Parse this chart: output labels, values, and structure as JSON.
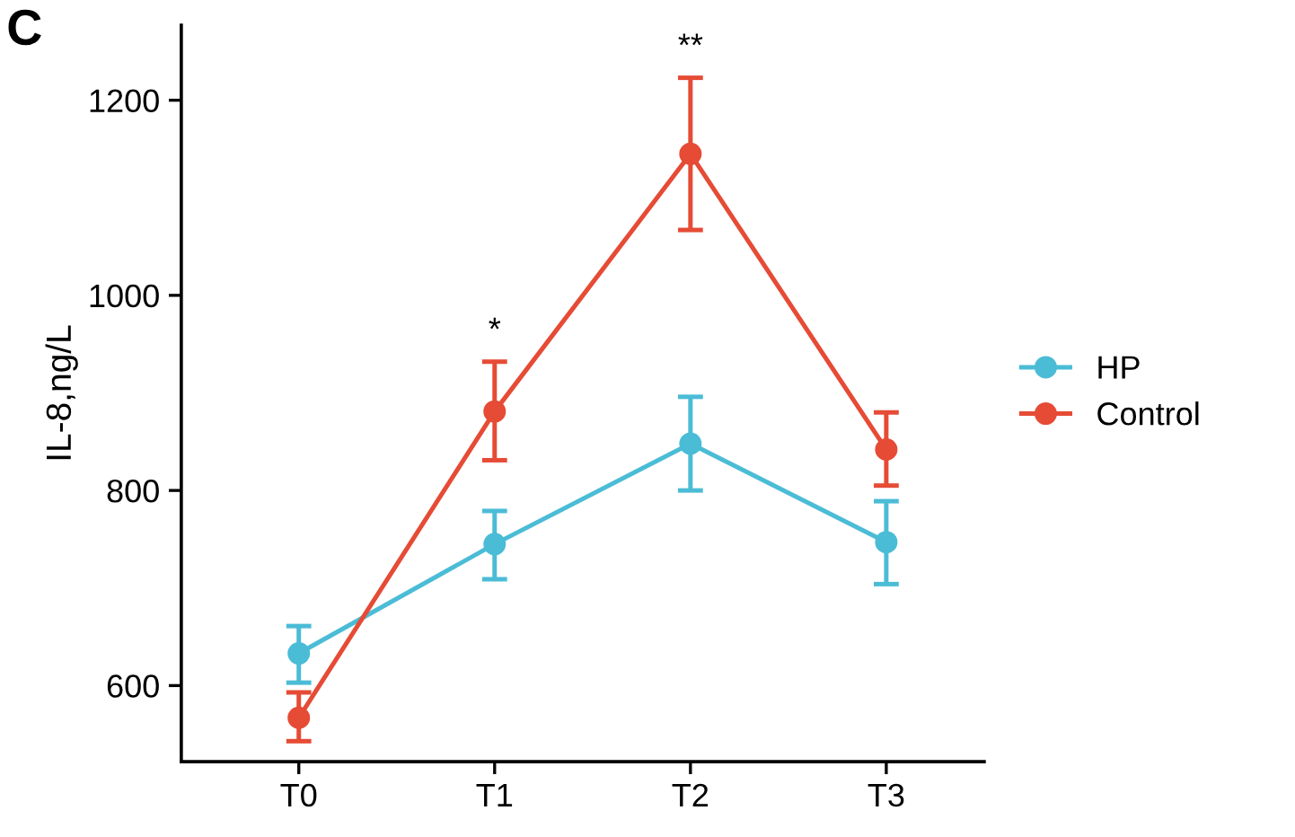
{
  "chart_data": {
    "type": "line",
    "ylabel": "IL-8,ng/L",
    "categories": [
      "T0",
      "T1",
      "T2",
      "T3"
    ],
    "series": [
      {
        "name": "HP",
        "color": "#4bbcd6",
        "values": [
          633,
          745,
          848,
          747
        ],
        "errors": [
          [
            603,
            661
          ],
          [
            709,
            779
          ],
          [
            800,
            896
          ],
          [
            704,
            789
          ]
        ]
      },
      {
        "name": "Control",
        "color": "#e64b35",
        "values": [
          567,
          881,
          1145,
          842
        ],
        "errors": [
          [
            543,
            593
          ],
          [
            831,
            932
          ],
          [
            1067,
            1223
          ],
          [
            805,
            880
          ]
        ]
      }
    ],
    "ylim": [
      522,
      1277
    ],
    "yticks": [
      600,
      800,
      1000,
      1200
    ],
    "grid": false,
    "legend": "right",
    "marker": "circle",
    "line_style": "solid",
    "annotations": [
      "C",
      "*",
      "**"
    ]
  }
}
